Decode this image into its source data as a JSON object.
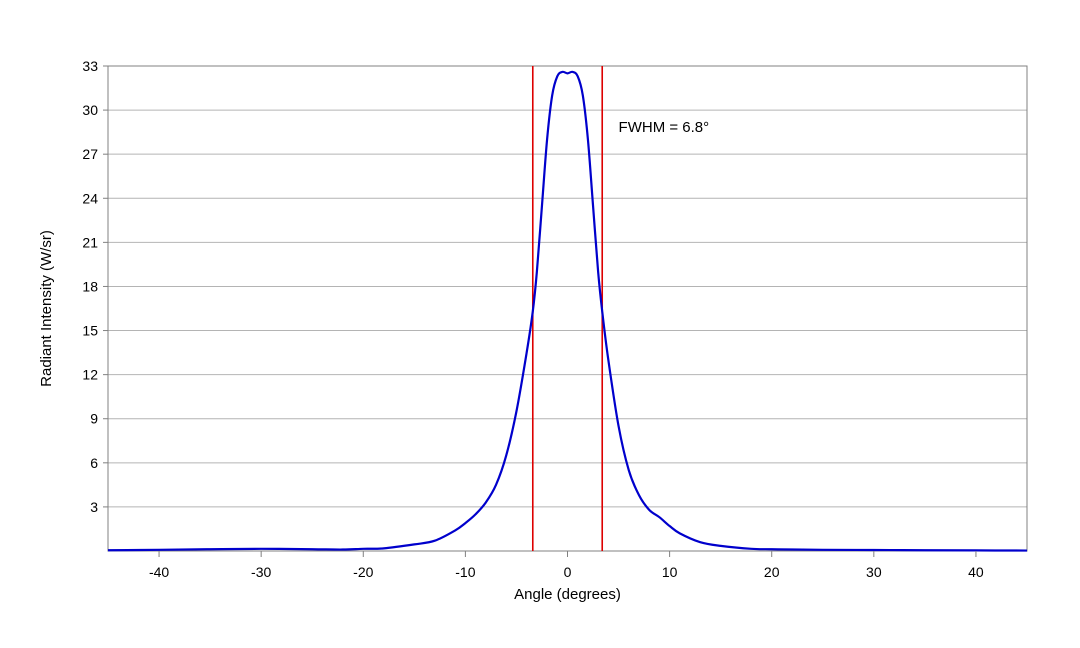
{
  "chart_data": {
    "type": "line",
    "title": "",
    "xlabel": "Angle (degrees)",
    "ylabel": "Radiant Intensity (W/sr)",
    "xlim": [
      -45,
      45
    ],
    "ylim": [
      0,
      33
    ],
    "x_ticks": [
      -40,
      -30,
      -20,
      -10,
      0,
      10,
      20,
      30,
      40
    ],
    "x_tick_labels": [
      "-40",
      "-30",
      "-20",
      "-10",
      "0",
      "10",
      "20",
      "30",
      "40"
    ],
    "y_ticks": [
      3,
      6,
      9,
      12,
      15,
      18,
      21,
      24,
      27,
      30,
      33
    ],
    "y_tick_labels": [
      "3",
      "6",
      "9",
      "12",
      "15",
      "18",
      "21",
      "24",
      "27",
      "30",
      "33"
    ],
    "grid": "horizontal",
    "series": [
      {
        "color": "#0000cc",
        "x": [
          -45,
          -40,
          -35,
          -30,
          -25,
          -22,
          -20,
          -18,
          -15,
          -13,
          -11,
          -10,
          -9,
          -8,
          -7,
          -6,
          -5,
          -4,
          -3.4,
          -3,
          -2.5,
          -2,
          -1.5,
          -1,
          -0.5,
          0,
          0.5,
          1,
          1.5,
          2,
          2.5,
          3,
          3.4,
          4,
          5,
          6,
          7,
          8,
          9,
          10,
          11,
          13,
          15,
          18,
          20,
          22,
          25,
          30,
          35,
          40,
          45
        ],
        "y": [
          0.05,
          0.08,
          0.12,
          0.15,
          0.12,
          0.1,
          0.15,
          0.18,
          0.45,
          0.7,
          1.4,
          1.9,
          2.5,
          3.3,
          4.5,
          6.5,
          9.5,
          13.5,
          16.3,
          19.0,
          23.5,
          28.0,
          31.0,
          32.3,
          32.6,
          32.5,
          32.6,
          32.3,
          31.0,
          28.0,
          23.5,
          19.0,
          16.3,
          13.0,
          8.5,
          5.5,
          3.8,
          2.8,
          2.3,
          1.7,
          1.2,
          0.6,
          0.35,
          0.15,
          0.12,
          0.1,
          0.08,
          0.07,
          0.05,
          0.04,
          0.03
        ]
      }
    ],
    "reference_lines": [
      {
        "x": -3.4,
        "color": "#dd0000"
      },
      {
        "x": 3.4,
        "color": "#dd0000"
      }
    ],
    "annotations": [
      {
        "text": "FWHM = 6.8°",
        "x": 5,
        "y": 28.5
      }
    ]
  }
}
